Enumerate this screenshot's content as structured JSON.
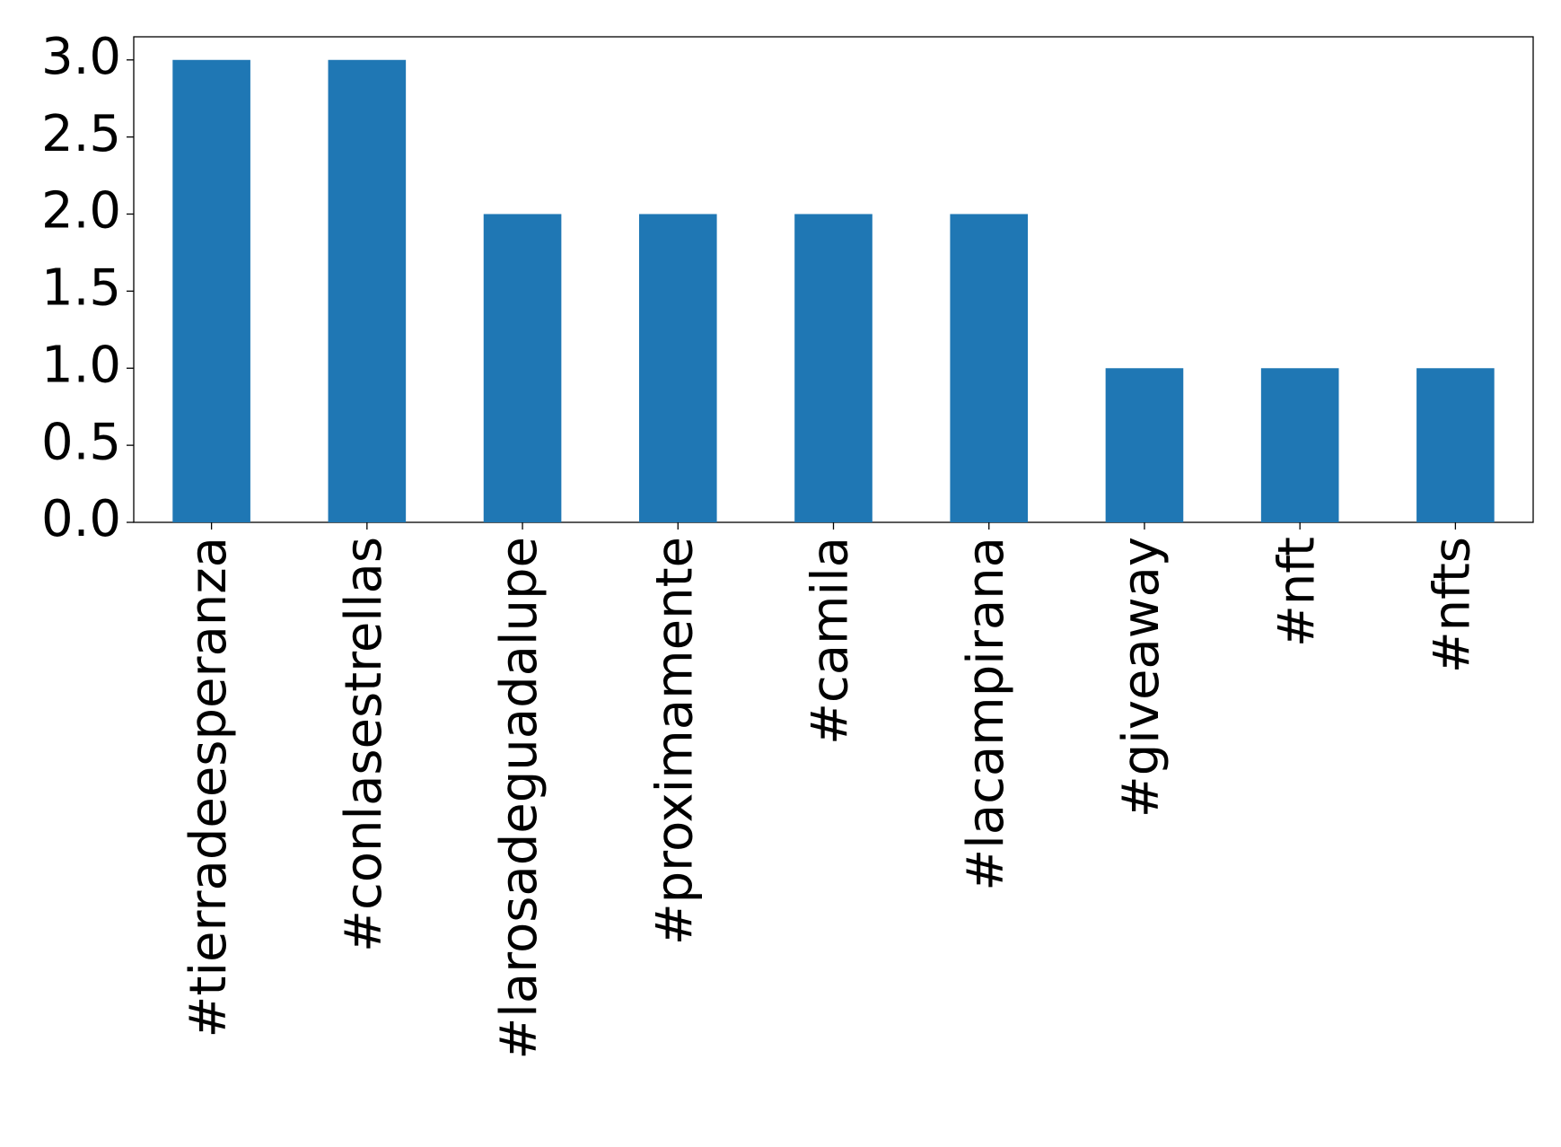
{
  "chart_data": {
    "type": "bar",
    "categories": [
      "#tierradeesperanza",
      "#conlasestrellas",
      "#larosadeguadalupe",
      "#proximamente",
      "#camila",
      "#lacampirana",
      "#giveaway",
      "#nft",
      "#nfts"
    ],
    "values": [
      3,
      3,
      2,
      2,
      2,
      2,
      1,
      1,
      1
    ],
    "color": "#1f77b4",
    "ylim": [
      0,
      3.15
    ],
    "yticks": [
      {
        "value": 0,
        "label": "0.0"
      },
      0.5,
      {
        "value": 1,
        "label": "1.0"
      },
      1.5,
      {
        "value": 2,
        "label": "2.0"
      },
      2.5,
      {
        "value": 3,
        "label": "3.0"
      }
    ],
    "grid": false
  }
}
